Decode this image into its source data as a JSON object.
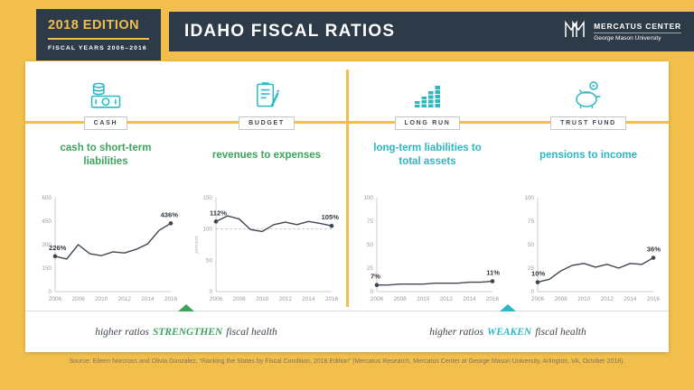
{
  "colors": {
    "background": "#F2BF4C",
    "navy": "#2D3A48",
    "teal": "#2BB7C4",
    "green": "#3DA45E",
    "series_line": "#3F4850"
  },
  "header": {
    "edition": "2018 EDITION",
    "fiscal_years": "FISCAL YEARS 2006–2016",
    "title": "IDAHO FISCAL RATIOS",
    "logo_name": "MERCATUS CENTER",
    "logo_sub": "George Mason University"
  },
  "chart_data": [
    {
      "type": "line",
      "group": "CASH",
      "icon": "money-icon",
      "title": "cash to short-term liabilities",
      "accent": "#3DA45E",
      "x": [
        2006,
        2007,
        2008,
        2009,
        2010,
        2011,
        2012,
        2013,
        2014,
        2015,
        2016
      ],
      "values": [
        226,
        208,
        300,
        242,
        230,
        254,
        247,
        270,
        305,
        392,
        436
      ],
      "ylim": [
        0,
        600
      ],
      "yticks": [
        0,
        150,
        300,
        450,
        600
      ],
      "xticks": [
        2006,
        2008,
        2010,
        2012,
        2014,
        2016
      ],
      "annotations": [
        {
          "x": 2006,
          "label": "226%"
        },
        {
          "x": 2016,
          "label": "436%"
        }
      ]
    },
    {
      "type": "line",
      "group": "BUDGET",
      "icon": "clipboard-pencil-icon",
      "title": "revenues to expenses",
      "accent": "#3DA45E",
      "x": [
        2006,
        2007,
        2008,
        2009,
        2010,
        2011,
        2012,
        2013,
        2014,
        2015,
        2016
      ],
      "values": [
        112,
        121,
        116,
        99,
        96,
        107,
        111,
        107,
        112,
        109,
        105
      ],
      "ylim": [
        0,
        150
      ],
      "yticks": [
        0,
        50,
        100,
        150
      ],
      "xticks": [
        2006,
        2008,
        2010,
        2012,
        2014,
        2016
      ],
      "refline": 100,
      "ylabel": "percent",
      "annotations": [
        {
          "x": 2006,
          "label": "112%"
        },
        {
          "x": 2016,
          "label": "105%"
        }
      ]
    },
    {
      "type": "line",
      "group": "LONG RUN",
      "icon": "bar-chart-icon",
      "title": "long-term liabilities to total assets",
      "accent": "#2BB7C4",
      "x": [
        2006,
        2007,
        2008,
        2009,
        2010,
        2011,
        2012,
        2013,
        2014,
        2015,
        2016
      ],
      "values": [
        7,
        7,
        8,
        8,
        8,
        9,
        9,
        9,
        10,
        10,
        11
      ],
      "ylim": [
        0,
        100
      ],
      "yticks": [
        0,
        25,
        50,
        75,
        100
      ],
      "xticks": [
        2006,
        2008,
        2010,
        2012,
        2014,
        2016
      ],
      "annotations": [
        {
          "x": 2006,
          "label": "7%"
        },
        {
          "x": 2016,
          "label": "11%"
        }
      ]
    },
    {
      "type": "line",
      "group": "TRUST FUND",
      "icon": "piggy-bank-icon",
      "title": "pensions to income",
      "accent": "#2BB7C4",
      "x": [
        2006,
        2007,
        2008,
        2009,
        2010,
        2011,
        2012,
        2013,
        2014,
        2015,
        2016
      ],
      "values": [
        10,
        13,
        22,
        28,
        30,
        26,
        29,
        25,
        30,
        29,
        36
      ],
      "ylim": [
        0,
        100
      ],
      "yticks": [
        0,
        25,
        50,
        75,
        100
      ],
      "xticks": [
        2006,
        2008,
        2010,
        2012,
        2014,
        2016
      ],
      "annotations": [
        {
          "x": 2006,
          "label": "10%"
        },
        {
          "x": 2016,
          "label": "36%"
        }
      ]
    }
  ],
  "ribbons": {
    "left": {
      "pre": "higher ratios",
      "em": "STRENGTHEN",
      "post": "fiscal health"
    },
    "right": {
      "pre": "higher ratios",
      "em": "WEAKEN",
      "post": "fiscal health"
    }
  },
  "source": "Source: Eileen Norcross and Olivia Gonzalez, “Ranking the States by Fiscal Condition, 2018 Edition” (Mercatus Research, Mercatus Center at George Mason University, Arlington, VA, October 2018)."
}
